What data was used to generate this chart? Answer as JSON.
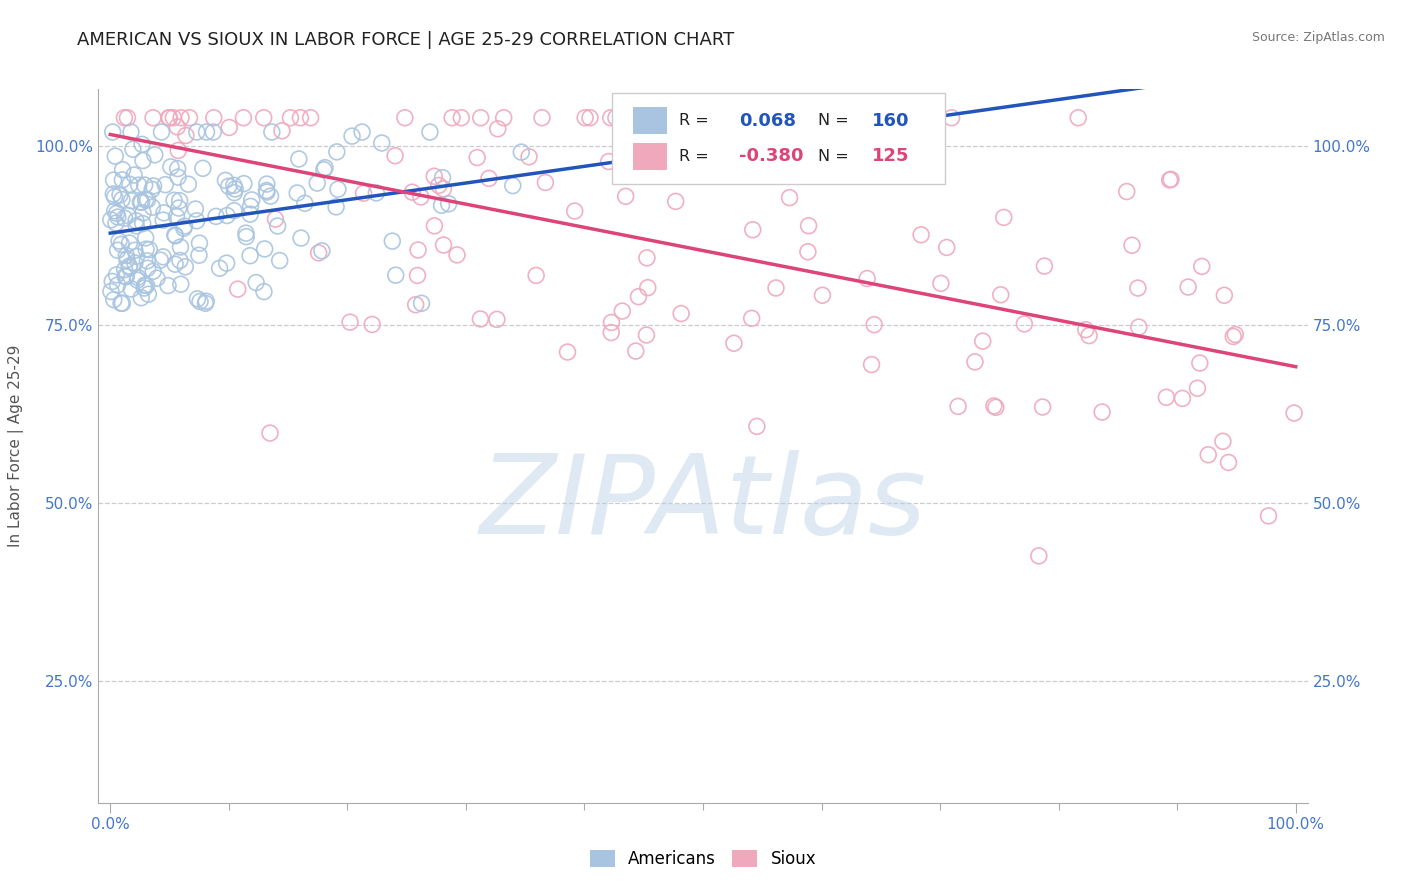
{
  "title": "AMERICAN VS SIOUX IN LABOR FORCE | AGE 25-29 CORRELATION CHART",
  "source_text": "Source: ZipAtlas.com",
  "ylabel": "In Labor Force | Age 25-29",
  "xlim": [
    -0.01,
    1.01
  ],
  "ylim": [
    0.08,
    1.08
  ],
  "x_tick_labels": [
    "0.0%",
    "100.0%"
  ],
  "y_tick_labels": [
    "25.0%",
    "50.0%",
    "75.0%",
    "100.0%"
  ],
  "y_tick_positions": [
    0.25,
    0.5,
    0.75,
    1.0
  ],
  "legend_r_american": "0.068",
  "legend_n_american": "160",
  "legend_r_sioux": "-0.380",
  "legend_n_sioux": "125",
  "american_color": "#a8c4e0",
  "sioux_color": "#f0a8bc",
  "american_line_color": "#2255bb",
  "sioux_line_color": "#dd4477",
  "background_color": "#ffffff",
  "grid_color": "#cccccc",
  "watermark": "ZIPAtlas",
  "title_fontsize": 13,
  "axis_label_fontsize": 11,
  "tick_label_color": "#4477cc",
  "n_american": 160,
  "n_sioux": 125,
  "american_r": 0.068,
  "sioux_r": -0.38,
  "am_seed": 42,
  "si_seed": 77
}
